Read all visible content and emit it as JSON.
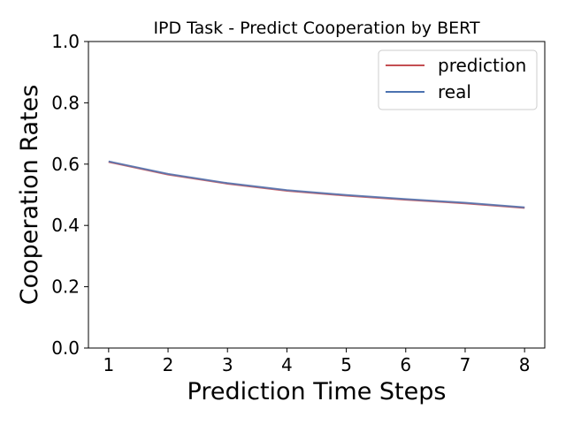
{
  "chart_data": {
    "type": "line",
    "title": "IPD Task - Predict Cooperation by BERT",
    "xlabel": "Prediction Time Steps",
    "ylabel": "Cooperation Rates",
    "x": [
      1,
      2,
      3,
      4,
      5,
      6,
      7,
      8
    ],
    "xlim": [
      0.66,
      8.34
    ],
    "ylim": [
      0.0,
      1.0
    ],
    "xticks": [
      "1",
      "2",
      "3",
      "4",
      "5",
      "6",
      "7",
      "8"
    ],
    "yticks": [
      "0.0",
      "0.2",
      "0.4",
      "0.6",
      "0.8",
      "1.0"
    ],
    "grid": false,
    "legend": {
      "placement": "top-right"
    },
    "series": [
      {
        "name": "prediction",
        "color": "#c44e52",
        "values": [
          0.607,
          0.566,
          0.536,
          0.513,
          0.497,
          0.484,
          0.472,
          0.457
        ]
      },
      {
        "name": "real",
        "color": "#4c72b0",
        "values": [
          0.609,
          0.568,
          0.538,
          0.515,
          0.499,
          0.486,
          0.474,
          0.459
        ]
      }
    ]
  }
}
